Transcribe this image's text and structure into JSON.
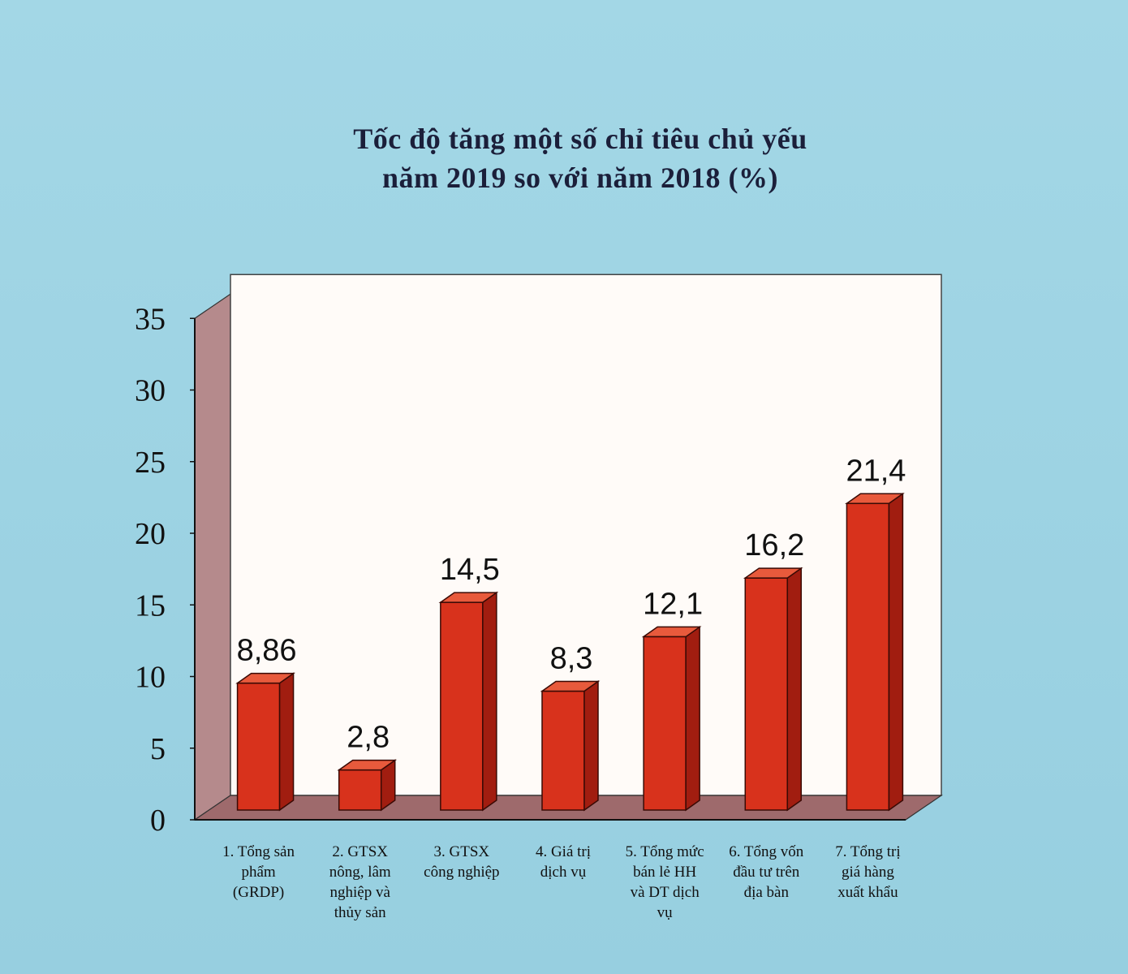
{
  "chart_data": {
    "type": "bar",
    "title": "Tốc độ tăng một số chỉ tiêu chủ yếu",
    "subtitle": "năm  2019 so với năm 2018 (%)",
    "categories": [
      "1. Tổng sản phẩm (GRDP)",
      "2. GTSX nông, lâm nghiệp và thủy sản",
      "3. GTSX công nghiệp",
      "4. Giá trị dịch vụ",
      "5. Tổng mức bán lẻ HH và DT dịch vụ",
      "6. Tổng vốn đầu tư trên địa bàn",
      "7. Tổng trị giá hàng xuất khẩu"
    ],
    "category_lines": [
      [
        "1. Tổng sản",
        "phẩm",
        "(GRDP)"
      ],
      [
        "2. GTSX",
        "nông, lâm",
        "nghiệp và",
        "thủy sản"
      ],
      [
        "3. GTSX",
        "công nghiệp"
      ],
      [
        "4. Giá trị",
        "dịch vụ"
      ],
      [
        "5. Tổng mức",
        "bán lẻ HH",
        "và DT dịch",
        "vụ"
      ],
      [
        "6. Tổng vốn",
        "đầu tư trên",
        "địa bàn"
      ],
      [
        "7. Tổng trị",
        "giá hàng",
        "xuất khẩu"
      ]
    ],
    "values": [
      8.86,
      2.8,
      14.5,
      8.3,
      12.1,
      16.2,
      21.4
    ],
    "value_labels": [
      "8,86",
      "2,8",
      "14,5",
      "8,3",
      "12,1",
      "16,2",
      "21,4"
    ],
    "yticks": [
      0,
      5,
      10,
      15,
      20,
      25,
      30,
      35
    ],
    "ylim": [
      0,
      35
    ],
    "xlabel": "",
    "ylabel": "",
    "grid": false,
    "legend": "none",
    "colors": {
      "bar_front": "#d8321c",
      "bar_side": "#a11d10",
      "bar_top": "#e85a3c",
      "wall": "#fffbf8",
      "side_wall": "#b58a8c",
      "floor": "#9e6a6c",
      "background": "#9dd4e3"
    }
  }
}
